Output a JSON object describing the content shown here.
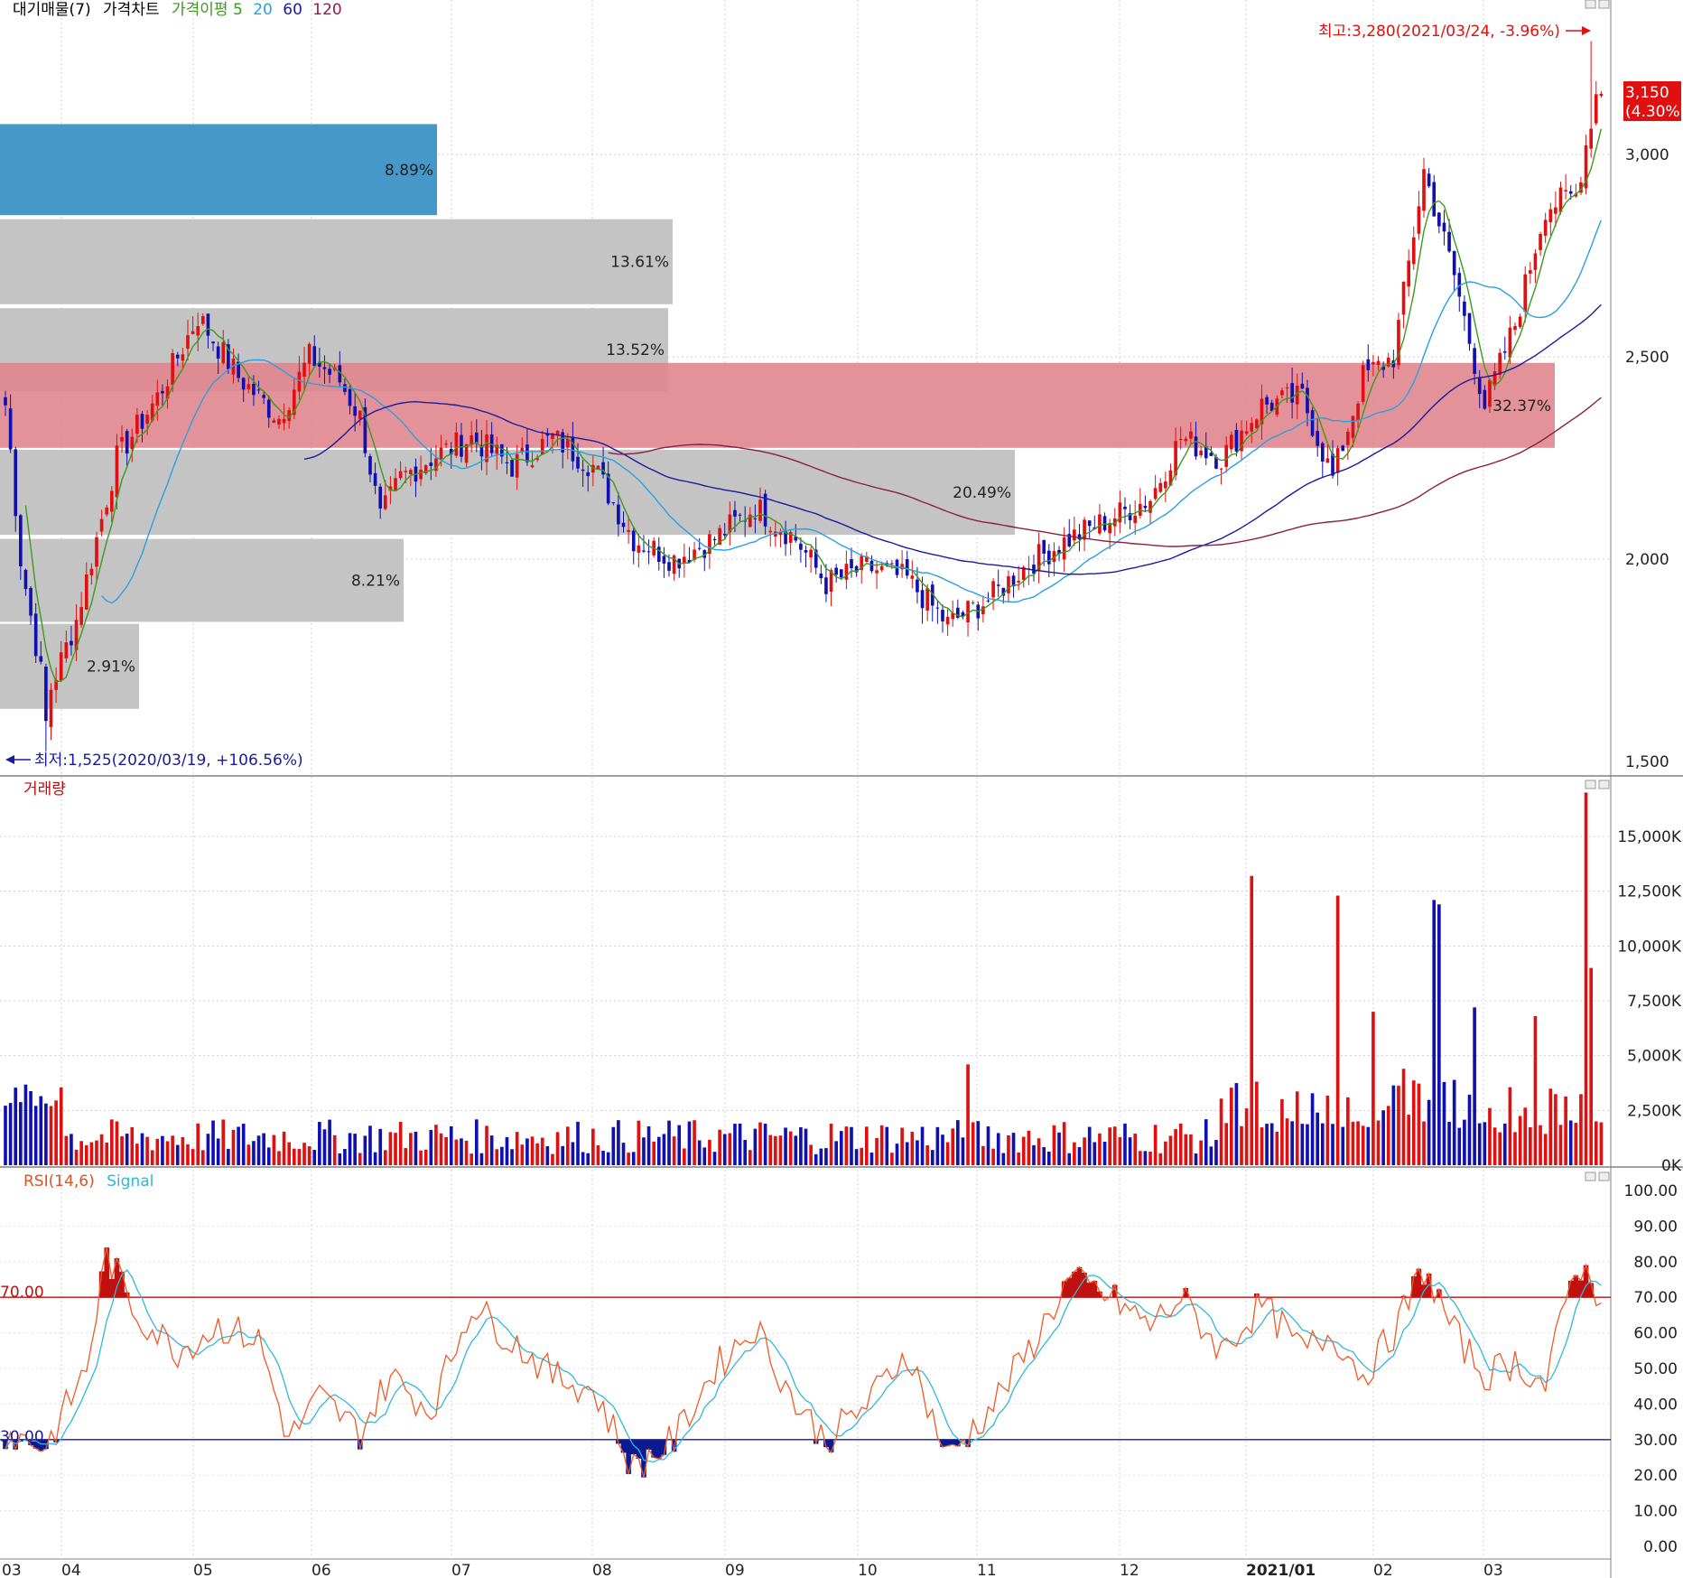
{
  "price_panel": {
    "legend": [
      "대기매물(7)",
      "가격차트",
      "가격이평 5",
      "20",
      "60",
      "120"
    ],
    "legend_colors": [
      "#000000",
      "#000000",
      "#3c9a1e",
      "#2aa0e0",
      "#1a1aa0",
      "#8b2040"
    ],
    "high_label": "최고:3,280(2021/03/24, -3.96%)",
    "low_label": "최저:1,525(2020/03/19, +106.56%)",
    "current_price": "3,150",
    "current_change": "(4.30%)",
    "y_ticks": [
      "3,000",
      "2,500",
      "2,000",
      "1,500"
    ]
  },
  "volume_panel": {
    "legend": "거래량",
    "y_ticks": [
      "15,000K",
      "12,500K",
      "10,000K",
      "7,500K",
      "5,000K",
      "2,500K",
      "0K"
    ]
  },
  "rsi_panel": {
    "legend": [
      "RSI(14,6)",
      "Signal"
    ],
    "y_ticks": [
      "100.00",
      "90.00",
      "80.00",
      "70.00",
      "60.00",
      "50.00",
      "40.00",
      "30.00",
      "20.00",
      "10.00",
      "0.00"
    ],
    "upper_label": "70.00",
    "lower_label": "30.00"
  },
  "x_ticks": [
    "03",
    "04",
    "05",
    "06",
    "07",
    "08",
    "09",
    "10",
    "11",
    "12",
    "2021/01",
    "02",
    "03"
  ],
  "chart_data": {
    "type": "candlestick",
    "volume_profile": [
      {
        "range": [
          2850,
          3075
        ],
        "pct": "8.89%",
        "max_zone": false
      },
      {
        "range": [
          2630,
          2840
        ],
        "pct": "13.61%",
        "max_zone": false
      },
      {
        "range": [
          2415,
          2620
        ],
        "pct": "13.52%",
        "max_zone": false
      },
      {
        "range": [
          2275,
          2485
        ],
        "pct": "32.37%",
        "max_zone": true
      },
      {
        "range": [
          2060,
          2270
        ],
        "pct": "20.49%",
        "max_zone": false
      },
      {
        "range": [
          1845,
          2050
        ],
        "pct": "8.21%",
        "max_zone": false
      },
      {
        "range": [
          1630,
          1840
        ],
        "pct": "2.91%",
        "max_zone": false
      }
    ],
    "price_path": [
      [
        0,
        2400
      ],
      [
        3,
        2000
      ],
      [
        8,
        1650
      ],
      [
        14,
        1850
      ],
      [
        22,
        2250
      ],
      [
        30,
        2400
      ],
      [
        38,
        2600
      ],
      [
        46,
        2450
      ],
      [
        54,
        2350
      ],
      [
        60,
        2500
      ],
      [
        66,
        2440
      ],
      [
        70,
        2350
      ],
      [
        74,
        2100
      ],
      [
        78,
        2200
      ],
      [
        84,
        2250
      ],
      [
        92,
        2300
      ],
      [
        100,
        2230
      ],
      [
        108,
        2300
      ],
      [
        116,
        2230
      ],
      [
        124,
        2050
      ],
      [
        132,
        2000
      ],
      [
        140,
        2050
      ],
      [
        148,
        2130
      ],
      [
        156,
        2050
      ],
      [
        162,
        1940
      ],
      [
        170,
        1980
      ],
      [
        178,
        1950
      ],
      [
        186,
        1840
      ],
      [
        194,
        1900
      ],
      [
        202,
        1990
      ],
      [
        210,
        2050
      ],
      [
        218,
        2100
      ],
      [
        226,
        2150
      ],
      [
        232,
        2300
      ],
      [
        240,
        2250
      ],
      [
        248,
        2380
      ],
      [
        256,
        2400
      ],
      [
        262,
        2200
      ],
      [
        268,
        2450
      ],
      [
        274,
        2500
      ],
      [
        280,
        2960
      ],
      [
        286,
        2700
      ],
      [
        292,
        2380
      ],
      [
        298,
        2580
      ],
      [
        304,
        2870
      ],
      [
        310,
        2900
      ],
      [
        314,
        3150
      ]
    ],
    "high": 3280,
    "low": 1525,
    "y_range": [
      1500,
      3300
    ],
    "volume_range": [
      0,
      17000
    ],
    "volume_spikes": [
      [
        190,
        4600
      ],
      [
        246,
        13200
      ],
      [
        263,
        12300
      ],
      [
        270,
        7000
      ],
      [
        276,
        4400
      ],
      [
        282,
        12100
      ],
      [
        283,
        11900
      ],
      [
        290,
        7200
      ],
      [
        302,
        6800
      ],
      [
        312,
        17000
      ],
      [
        313,
        9000
      ]
    ],
    "rsi_range": [
      0,
      100
    ],
    "rsi_levels": [
      70,
      30
    ],
    "rsi_path": [
      [
        0,
        32
      ],
      [
        8,
        28
      ],
      [
        16,
        50
      ],
      [
        20,
        82
      ],
      [
        26,
        65
      ],
      [
        34,
        55
      ],
      [
        42,
        62
      ],
      [
        50,
        58
      ],
      [
        56,
        30
      ],
      [
        62,
        42
      ],
      [
        70,
        32
      ],
      [
        76,
        48
      ],
      [
        84,
        38
      ],
      [
        92,
        68
      ],
      [
        100,
        58
      ],
      [
        108,
        48
      ],
      [
        116,
        44
      ],
      [
        124,
        22
      ],
      [
        132,
        30
      ],
      [
        140,
        50
      ],
      [
        148,
        62
      ],
      [
        156,
        40
      ],
      [
        162,
        30
      ],
      [
        170,
        40
      ],
      [
        178,
        55
      ],
      [
        186,
        25
      ],
      [
        194,
        38
      ],
      [
        202,
        55
      ],
      [
        210,
        75
      ],
      [
        218,
        70
      ],
      [
        226,
        62
      ],
      [
        232,
        70
      ],
      [
        240,
        55
      ],
      [
        248,
        68
      ],
      [
        256,
        55
      ],
      [
        262,
        60
      ],
      [
        268,
        48
      ],
      [
        274,
        60
      ],
      [
        280,
        78
      ],
      [
        286,
        60
      ],
      [
        292,
        48
      ],
      [
        298,
        52
      ],
      [
        304,
        45
      ],
      [
        310,
        80
      ],
      [
        314,
        72
      ]
    ]
  }
}
